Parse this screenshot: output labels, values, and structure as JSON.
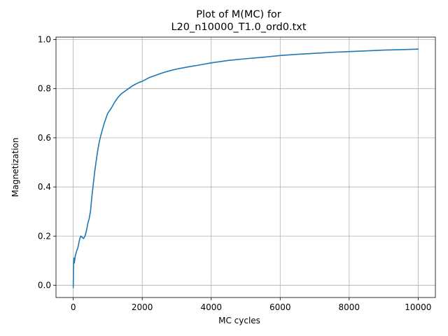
{
  "chart_data": {
    "type": "line",
    "title_line1": "Plot of M(MC) for",
    "title_line2": "L20_n10000_T1.0_ord0.txt",
    "xlabel": "MC cycles",
    "ylabel": "Magnetization",
    "xlim": [
      -500,
      10500
    ],
    "ylim": [
      -0.05,
      1.01
    ],
    "xticks": [
      0,
      2000,
      4000,
      6000,
      8000,
      10000
    ],
    "xtick_labels": [
      "0",
      "2000",
      "4000",
      "6000",
      "8000",
      "10000"
    ],
    "yticks": [
      0.0,
      0.2,
      0.4,
      0.6,
      0.8,
      1.0
    ],
    "ytick_labels": [
      "0.0",
      "0.2",
      "0.4",
      "0.6",
      "0.8",
      "1.0"
    ],
    "grid": true,
    "series": [
      {
        "color": "#1f77b4",
        "x": [
          0,
          5,
          10,
          20,
          30,
          40,
          60,
          80,
          100,
          130,
          160,
          190,
          220,
          260,
          300,
          340,
          380,
          420,
          460,
          500,
          540,
          580,
          620,
          660,
          700,
          750,
          800,
          900,
          1000,
          1100,
          1200,
          1300,
          1400,
          1500,
          1600,
          1700,
          1800,
          1900,
          2000,
          2200,
          2400,
          2600,
          2800,
          3000,
          3300,
          3600,
          4000,
          4500,
          5000,
          5500,
          6000,
          6500,
          7000,
          7500,
          8000,
          8500,
          9000,
          9500,
          10000
        ],
        "y": [
          -0.01,
          0.06,
          0.09,
          0.11,
          0.09,
          0.1,
          0.12,
          0.13,
          0.14,
          0.15,
          0.17,
          0.19,
          0.2,
          0.195,
          0.19,
          0.2,
          0.22,
          0.25,
          0.27,
          0.3,
          0.36,
          0.41,
          0.46,
          0.5,
          0.54,
          0.58,
          0.61,
          0.66,
          0.7,
          0.72,
          0.745,
          0.765,
          0.78,
          0.79,
          0.8,
          0.81,
          0.818,
          0.825,
          0.83,
          0.845,
          0.855,
          0.865,
          0.873,
          0.88,
          0.888,
          0.895,
          0.905,
          0.915,
          0.922,
          0.928,
          0.935,
          0.94,
          0.944,
          0.948,
          0.951,
          0.954,
          0.957,
          0.959,
          0.961
        ]
      }
    ]
  }
}
